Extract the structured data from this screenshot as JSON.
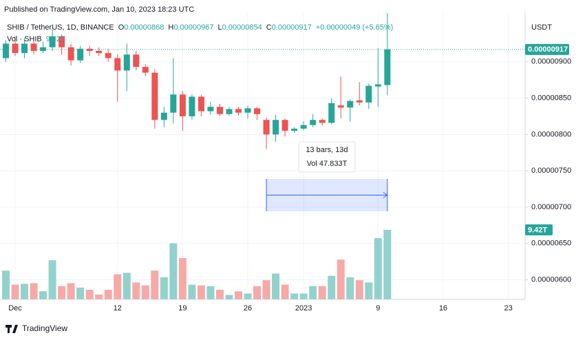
{
  "chart_data": {
    "type": "candlestick",
    "published": "Published on TradingView.com, Jan 10, 2023 18:23 UTC",
    "legend": {
      "symbol": "SHIB / TetherUS, 1D, BINANCE",
      "open": {
        "label": "O",
        "value": "0.00000868"
      },
      "high": {
        "label": "H",
        "value": "0.00000967"
      },
      "low": {
        "label": "L",
        "value": "0.00000854"
      },
      "close": {
        "label": "C",
        "value": "0.00000917"
      },
      "change": "+0.00000049 (+5.65%)",
      "volume_name": "Vol · SHIB",
      "volume_value": "9.42T"
    },
    "currency": "USDT",
    "categories": [
      "Nov 30",
      "Dec 1",
      "Dec 2",
      "Dec 3",
      "Dec 4",
      "Dec 5",
      "Dec 6",
      "Dec 7",
      "Dec 8",
      "Dec 9",
      "Dec 10",
      "Dec 11",
      "Dec 12",
      "Dec 13",
      "Dec 14",
      "Dec 15",
      "Dec 16",
      "Dec 17",
      "Dec 18",
      "Dec 19",
      "Dec 20",
      "Dec 21",
      "Dec 22",
      "Dec 23",
      "Dec 24",
      "Dec 25",
      "Dec 26",
      "Dec 27",
      "Dec 28",
      "Dec 29",
      "Dec 30",
      "Dec 31",
      "Jan 1",
      "Jan 2",
      "Jan 3",
      "Jan 4",
      "Jan 5",
      "Jan 6",
      "Jan 7",
      "Jan 8",
      "Jan 9",
      "Jan 10"
    ],
    "open": [
      9.05e-06,
      9.25e-06,
      9.12e-06,
      9.25e-06,
      9.15e-06,
      9.2e-06,
      9.35e-06,
      9.2e-06,
      9.02e-06,
      9.18e-06,
      9.15e-06,
      9.12e-06,
      9.05e-06,
      8.88e-06,
      9.1e-06,
      8.93e-06,
      8.85e-06,
      8.2e-06,
      8.3e-06,
      8.55e-06,
      8.25e-06,
      8.52e-06,
      8.32e-06,
      8.38e-06,
      8.28e-06,
      8.35e-06,
      8.3e-06,
      8.36e-06,
      8.2e-06,
      8e-06,
      8.2e-06,
      8.05e-06,
      8.08e-06,
      8.13e-06,
      8.2e-06,
      8.16e-06,
      8.4e-06,
      8.37e-06,
      8.47e-06,
      8.44e-06,
      8.66e-06,
      8.68e-06
    ],
    "high": [
      9.3e-06,
      9.35e-06,
      9.32e-06,
      9.28e-06,
      9.28e-06,
      9.45e-06,
      9.38e-06,
      9.25e-06,
      9.22e-06,
      9.22e-06,
      9.2e-06,
      9.18e-06,
      9.1e-06,
      9.25e-06,
      9.15e-06,
      8.97e-06,
      8.9e-06,
      8.38e-06,
      9.05e-06,
      8.6e-06,
      8.55e-06,
      8.55e-06,
      8.45e-06,
      8.42e-06,
      8.38e-06,
      8.38e-06,
      8.4e-06,
      8.38e-06,
      8.23e-06,
      8.27e-06,
      8.22e-06,
      8.1e-06,
      8.18e-06,
      8.28e-06,
      8.22e-06,
      8.5e-06,
      8.8e-06,
      8.48e-06,
      8.72e-06,
      8.7e-06,
      9.19e-06,
      9.67e-06
    ],
    "low": [
      9e-06,
      9.08e-06,
      9.05e-06,
      9.1e-06,
      9.12e-06,
      9.15e-06,
      9.1e-06,
      8.95e-06,
      8.98e-06,
      9.08e-06,
      9.08e-06,
      9e-06,
      8.45e-06,
      8.6e-06,
      8.88e-06,
      8.8e-06,
      8.08e-06,
      8.1e-06,
      8.15e-06,
      8.05e-06,
      8.2e-06,
      8.25e-06,
      8.27e-06,
      8.25e-06,
      8.26e-06,
      8.26e-06,
      8.22e-06,
      8.2e-06,
      7.8e-06,
      7.9e-06,
      7.97e-06,
      8.02e-06,
      8.06e-06,
      8.1e-06,
      8.12e-06,
      8.14e-06,
      8.22e-06,
      8.18e-06,
      8.4e-06,
      8.35e-06,
      8.38e-06,
      8.54e-06
    ],
    "close": [
      9.25e-06,
      9.12e-06,
      9.25e-06,
      9.15e-06,
      9.2e-06,
      9.35e-06,
      9.2e-06,
      9.02e-06,
      9.18e-06,
      9.15e-06,
      9.12e-06,
      9.05e-06,
      8.88e-06,
      9.1e-06,
      8.93e-06,
      8.85e-06,
      8.2e-06,
      8.3e-06,
      8.55e-06,
      8.25e-06,
      8.52e-06,
      8.32e-06,
      8.38e-06,
      8.28e-06,
      8.35e-06,
      8.3e-06,
      8.36e-06,
      8.28e-06,
      8e-06,
      8.2e-06,
      8.05e-06,
      8.08e-06,
      8.13e-06,
      8.2e-06,
      8.16e-06,
      8.43e-06,
      8.37e-06,
      8.46e-06,
      8.44e-06,
      8.67e-06,
      8.69e-06,
      9.17e-06
    ],
    "volume": [
      3900000000000.0,
      2000000000000.0,
      2100000000000.0,
      2200000000000.0,
      1100000000000.0,
      5300000000000.0,
      1800000000000.0,
      2200000000000.0,
      1600000000000.0,
      1300000000000.0,
      650000000000.0,
      1300000000000.0,
      3400000000000.0,
      3600000000000.0,
      2300000000000.0,
      1900000000000.0,
      3900000000000.0,
      3000000000000.0,
      7600000000000.0,
      5600000000000.0,
      2000000000000.0,
      1900000000000.0,
      1800000000000.0,
      1300000000000.0,
      600000000000.0,
      1100000000000.0,
      800000000000.0,
      1800000000000.0,
      2600000000000.0,
      3500000000000.0,
      2000000000000.0,
      800000000000.0,
      800000000000.0,
      1800000000000.0,
      1800000000000.0,
      3200000000000.0,
      5400000000000.0,
      3000000000000.0,
      2600000000000.0,
      2300000000000.0,
      8300000000000.0,
      9420000000000.0
    ],
    "up_color": "#26a69a",
    "down_color": "#ef5350",
    "volume_up_color": "#92d2cc",
    "volume_down_color": "#f7a9a7",
    "last_price_label": "0.00000917",
    "volume_label": "9.42T",
    "ylim": [
      5.73e-06,
      9.68e-06
    ],
    "yticks": [
      {
        "value": 9e-06,
        "label": "0.00000900"
      },
      {
        "value": 8.5e-06,
        "label": "0.00000850"
      },
      {
        "value": 8e-06,
        "label": "0.00000800"
      },
      {
        "value": 7.5e-06,
        "label": "0.00000750"
      },
      {
        "value": 7e-06,
        "label": "0.00000700"
      },
      {
        "value": 6.5e-06,
        "label": "0.00000650"
      },
      {
        "value": 6e-06,
        "label": "0.00000600"
      }
    ],
    "xticks": [
      {
        "value": "Dec 1",
        "label": "Dec"
      },
      {
        "value": "Dec 12",
        "label": "12"
      },
      {
        "value": "Dec 19",
        "label": "19"
      },
      {
        "value": "Dec 26",
        "label": "26"
      },
      {
        "value": "Jan 1",
        "label": "2023"
      },
      {
        "value": "Jan 9",
        "label": "9"
      },
      {
        "value": "Jan 16",
        "label": "16"
      },
      {
        "value": "Jan 23",
        "label": "23"
      }
    ],
    "grid": true,
    "measure": {
      "from": "Dec 28",
      "to": "Jan 10",
      "bars": "13 bars, 13d",
      "volume": "Vol 47.833T"
    },
    "brand": "TradingView"
  }
}
